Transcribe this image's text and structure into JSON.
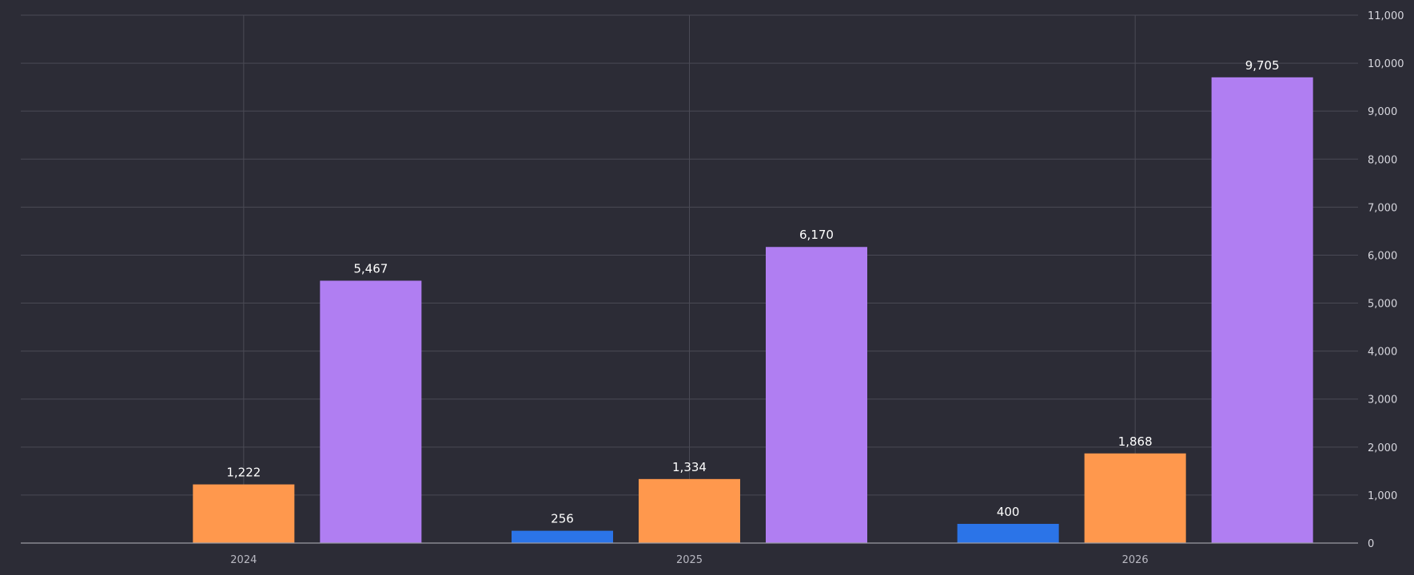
{
  "chart_data": {
    "type": "bar",
    "title": "",
    "xlabel": "",
    "ylabel": "",
    "categories": [
      "2024",
      "2025",
      "2026"
    ],
    "series": [
      {
        "color": "#2b74e8",
        "values": [
          null,
          256,
          400
        ],
        "labels": [
          "",
          "256",
          "400"
        ]
      },
      {
        "color": "#ff984d",
        "values": [
          1222,
          1334,
          1868
        ],
        "labels": [
          "1,222",
          "1,334",
          "1,868"
        ]
      },
      {
        "color": "#b07ef2",
        "values": [
          5467,
          6170,
          9705
        ],
        "labels": [
          "5,467",
          "6,170",
          "9,705"
        ]
      }
    ],
    "ylim": [
      0,
      11000
    ],
    "yticks": [
      0,
      1000,
      2000,
      3000,
      4000,
      5000,
      6000,
      7000,
      8000,
      9000,
      10000,
      11000
    ],
    "ytick_labels": [
      "0",
      "1,000",
      "2,000",
      "3,000",
      "4,000",
      "5,000",
      "6,000",
      "7,000",
      "8,000",
      "9,000",
      "10,000",
      "11,000"
    ],
    "y_axis_side": "right",
    "grid": true,
    "legend": "none"
  },
  "colors": {
    "background": "#2c2c36",
    "grid": "#4a4a55",
    "baseline": "#9a9aa3",
    "text": "#d7d7de"
  }
}
